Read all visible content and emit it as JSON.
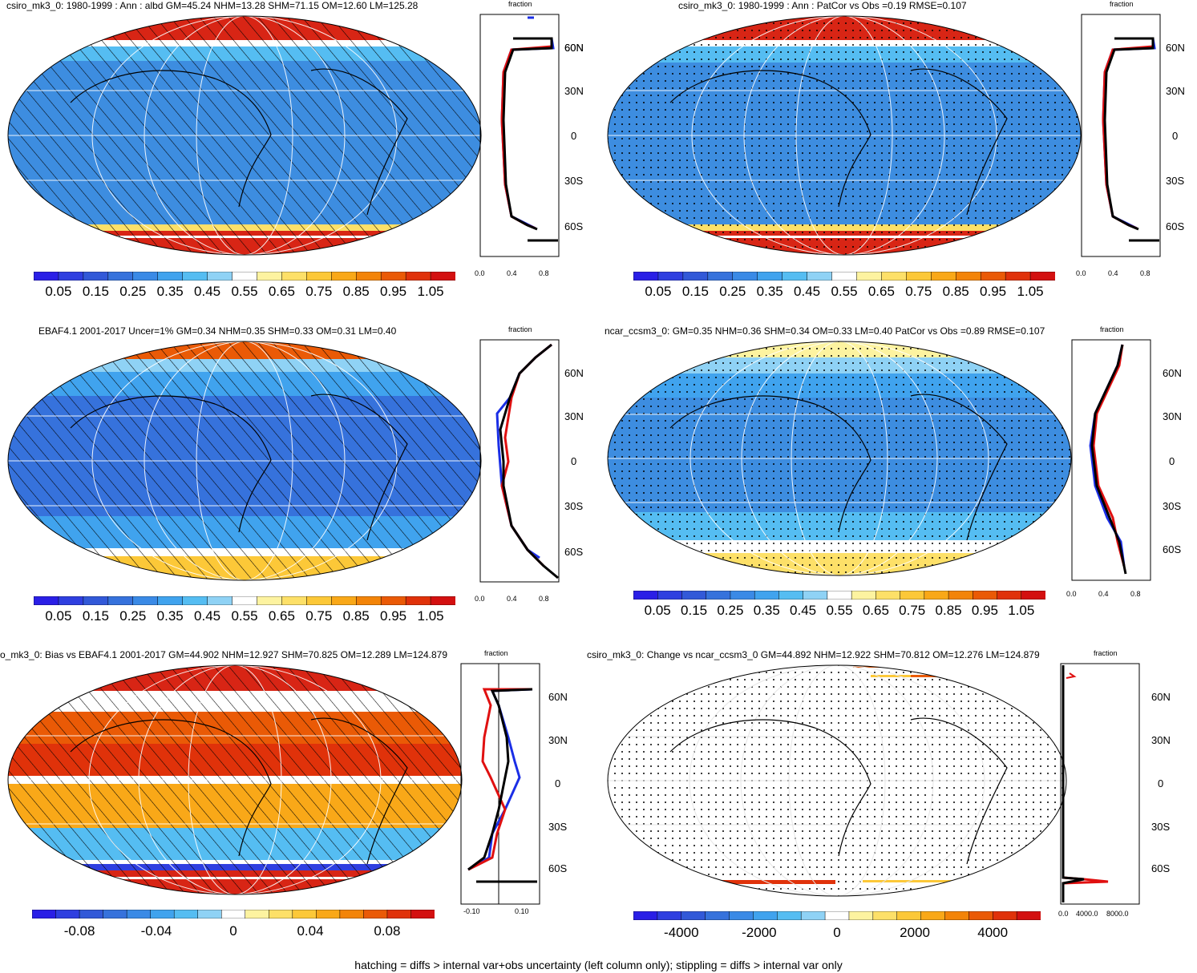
{
  "footer": "hatching = diffs > internal var+obs uncertainty (left column only); stippling = diffs > internal var only",
  "zonal_axis_title": "fraction",
  "lat_ticks": [
    "60N",
    "30N",
    "0",
    "30S",
    "60S"
  ],
  "colors": {
    "seq_scale": [
      "#2a1fe6",
      "#2f3fe0",
      "#3259d8",
      "#3672dc",
      "#3a8ae6",
      "#40a3ee",
      "#55bdf2",
      "#8fd2f5",
      "#ffffff",
      "#fdf3a0",
      "#fde068",
      "#fcc838",
      "#f9a818",
      "#f38408",
      "#ea5a06",
      "#e0320a",
      "#d31010"
    ],
    "ocean_low": "#3d8de0",
    "ice_high": "#d82515",
    "obs_line": "#000000",
    "model_line": "#e01010",
    "ref_line": "#1a2ee6"
  },
  "panels": [
    {
      "id": "p1",
      "title": "csiro_mk3_0: 1980-1999 : Ann : albd GM=45.24 NHM=13.28 SHM=71.15 OM=12.60 LM=125.28",
      "cbar_labels": [
        "0.05",
        "0.15",
        "0.25",
        "0.35",
        "0.45",
        "0.55",
        "0.65",
        "0.75",
        "0.85",
        "0.95",
        "1.05"
      ],
      "zonal_xticks": [
        "0.0",
        "0.4",
        "0.8"
      ],
      "pattern": "hatch"
    },
    {
      "id": "p2",
      "title": "csiro_mk3_0: 1980-1999 : Ann : PatCor vs Obs =0.19 RMSE=0.107",
      "cbar_labels": [
        "0.05",
        "0.15",
        "0.25",
        "0.35",
        "0.45",
        "0.55",
        "0.65",
        "0.75",
        "0.85",
        "0.95",
        "1.05"
      ],
      "zonal_xticks": [
        "0.0",
        "0.4",
        "0.8"
      ],
      "pattern": "stipple"
    },
    {
      "id": "p3",
      "title": "EBAF4.1 2001-2017 Uncer=1% GM=0.34 NHM=0.35 SHM=0.33 OM=0.31 LM=0.40",
      "cbar_labels": [
        "0.05",
        "0.15",
        "0.25",
        "0.35",
        "0.45",
        "0.55",
        "0.65",
        "0.75",
        "0.85",
        "0.95",
        "1.05"
      ],
      "zonal_xticks": [
        "0.0",
        "0.4",
        "0.8"
      ],
      "pattern": "hatch"
    },
    {
      "id": "p4",
      "title": "ncar_ccsm3_0: GM=0.35 NHM=0.36 SHM=0.34 OM=0.33 LM=0.40 PatCor vs Obs =0.89 RMSE=0.107",
      "cbar_labels": [
        "0.05",
        "0.15",
        "0.25",
        "0.35",
        "0.45",
        "0.55",
        "0.65",
        "0.75",
        "0.85",
        "0.95",
        "1.05"
      ],
      "zonal_xticks": [
        "0.0",
        "0.4",
        "0.8"
      ],
      "pattern": "stipple"
    },
    {
      "id": "p5",
      "title": "o_mk3_0: Bias vs EBAF4.1 2001-2017 GM=44.902 NHM=12.927 SHM=70.825 OM=12.289 LM=124.879",
      "cbar_labels": [
        "-0.08",
        "-0.04",
        "0",
        "0.04",
        "0.08"
      ],
      "zonal_xticks": [
        "-0.10",
        "0.10"
      ],
      "pattern": "hatch"
    },
    {
      "id": "p6",
      "title": "csiro_mk3_0: Change vs ncar_ccsm3_0 GM=44.892 NHM=12.922 SHM=70.812 OM=12.276 LM=124.879",
      "cbar_labels": [
        "-4000",
        "-2000",
        "0",
        "2000",
        "4000"
      ],
      "zonal_xticks": [
        "0.0",
        "4000.0",
        "8000.0"
      ],
      "pattern": "stipple"
    }
  ]
}
